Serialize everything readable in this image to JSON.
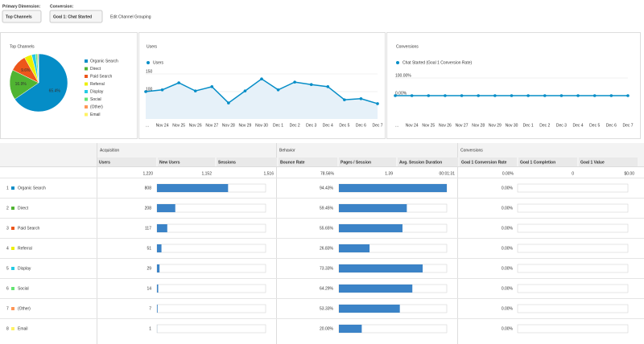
{
  "controls": {
    "primary_dimension_label": "Primary Dimension:",
    "primary_dimension": "Top Channels",
    "conversion_label": "Conversion:",
    "conversion": "Goal 1: Chat Started",
    "edit_link": "Edit Channel Grouping"
  },
  "top_channels": {
    "type": "pie",
    "title": "Top Channels",
    "labels": [
      "Organic Search",
      "Direct",
      "Paid Search",
      "Referral",
      "Display",
      "Social",
      "(Other)",
      "Email"
    ],
    "colors": [
      "#058dc7",
      "#50b432",
      "#ed561b",
      "#edef00",
      "#24cbe5",
      "#64e572",
      "#ff9655",
      "#fff263"
    ],
    "values": [
      65.4,
      16.9,
      9.6,
      4.2,
      2.2,
      1.1,
      0.5,
      0.1
    ],
    "value_labels": [
      "65.4%",
      "16.9%",
      "9.6%",
      null,
      null,
      null,
      null,
      null
    ]
  },
  "users_chart": {
    "type": "line",
    "title": "Users",
    "series_name": "Users",
    "color": "#058dc7",
    "categories": [
      "...",
      "Nov 24",
      "Nov 25",
      "Nov 26",
      "Nov 27",
      "Nov 28",
      "Nov 29",
      "Nov 30",
      "Dec 1",
      "Dec 2",
      "Dec 3",
      "Dec 4",
      "Dec 5",
      "Dec 6",
      "Dec 7"
    ],
    "values": [
      100,
      105,
      125,
      102,
      114,
      68,
      102,
      136,
      105,
      127,
      120,
      114,
      77,
      80,
      66
    ],
    "ylim": [
      0,
      150
    ],
    "yticks": [
      50,
      100,
      150
    ]
  },
  "conversions_chart": {
    "type": "line",
    "title": "Conversions",
    "series_name": "Chat Started (Goal 1 Conversion Rate)",
    "color": "#058dc7",
    "categories": [
      "...",
      "Nov 24",
      "Nov 25",
      "Nov 26",
      "Nov 27",
      "Nov 28",
      "Nov 29",
      "Nov 30",
      "Dec 1",
      "Dec 2",
      "Dec 3",
      "Dec 4",
      "Dec 5",
      "Dec 6",
      "Dec 7"
    ],
    "values": [
      0,
      0,
      0,
      0,
      0,
      0,
      0,
      0,
      0,
      0,
      0,
      0,
      0,
      0,
      0
    ],
    "ylim": [
      0,
      100
    ],
    "yticks": [
      {
        "value": 0,
        "label": "0.00%"
      },
      {
        "value": 100,
        "label": "100.00%"
      }
    ]
  },
  "table": {
    "groups": [
      "Acquisition",
      "Behavior",
      "Conversions"
    ],
    "columns": [
      "Users",
      "New Users",
      "Sessions",
      "Bounce Rate",
      "Pages / Session",
      "Avg. Session Duration",
      "Goal 1 Conversion Rate",
      "Goal 1 Completion",
      "Goal 1 Value"
    ],
    "totals": [
      "1,220",
      "1,152",
      "1,516",
      "78.56%",
      "1.39",
      "00:01:31",
      "0.00%",
      "0",
      "$0.00"
    ],
    "rows": [
      {
        "index": 1,
        "channel": "Organic Search",
        "users": 808,
        "bounce_rate": 94.43,
        "bounce_rate_label": "94.43%",
        "conversion_rate": 0,
        "conversion_rate_label": "0.00%"
      },
      {
        "index": 2,
        "channel": "Direct",
        "users": 208,
        "bounce_rate": 59.45,
        "bounce_rate_label": "59.45%",
        "conversion_rate": 0,
        "conversion_rate_label": "0.00%"
      },
      {
        "index": 3,
        "channel": "Paid Search",
        "users": 117,
        "bounce_rate": 55.65,
        "bounce_rate_label": "55.65%",
        "conversion_rate": 0,
        "conversion_rate_label": "0.00%"
      },
      {
        "index": 4,
        "channel": "Referral",
        "users": 51,
        "bounce_rate": 26.83,
        "bounce_rate_label": "26.83%",
        "conversion_rate": 0,
        "conversion_rate_label": "0.00%"
      },
      {
        "index": 5,
        "channel": "Display",
        "users": 29,
        "bounce_rate": 73.33,
        "bounce_rate_label": "73.33%",
        "conversion_rate": 0,
        "conversion_rate_label": "0.00%"
      },
      {
        "index": 6,
        "channel": "Social",
        "users": 14,
        "bounce_rate": 64.29,
        "bounce_rate_label": "64.29%",
        "conversion_rate": 0,
        "conversion_rate_label": "0.00%"
      },
      {
        "index": 7,
        "channel": "(Other)",
        "users": 7,
        "bounce_rate": 53.33,
        "bounce_rate_label": "53.33%",
        "conversion_rate": 0,
        "conversion_rate_label": "0.00%"
      },
      {
        "index": 8,
        "channel": "Email",
        "users": 1,
        "bounce_rate": 20,
        "bounce_rate_label": "20.00%",
        "conversion_rate": 0,
        "conversion_rate_label": "0.00%"
      }
    ]
  }
}
